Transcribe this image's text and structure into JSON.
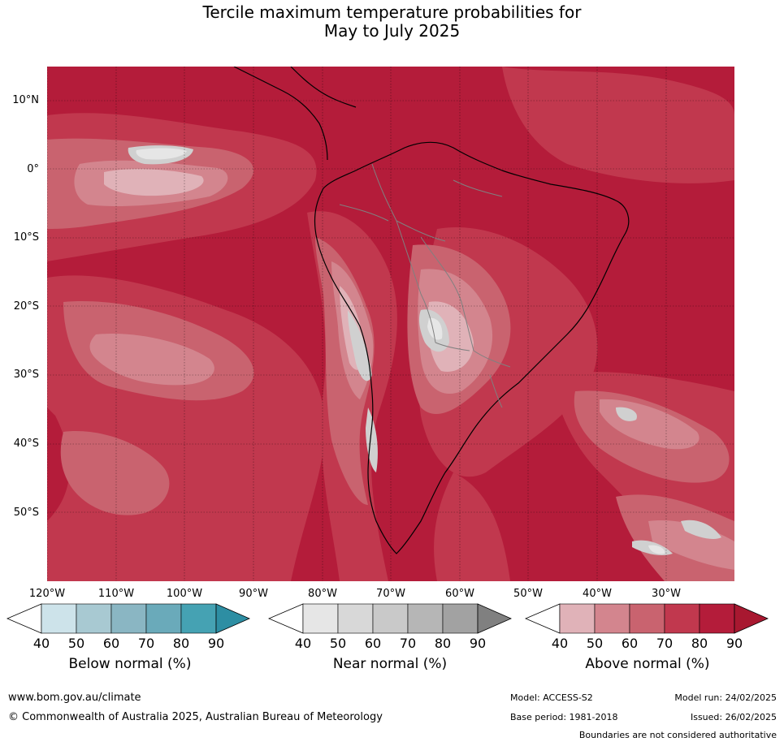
{
  "title": {
    "line1": "Tercile maximum temperature probabilities for",
    "line2": "May to July 2025"
  },
  "map": {
    "lat_labels": [
      "10°N",
      "0°",
      "10°S",
      "20°S",
      "30°S",
      "40°S",
      "50°S"
    ],
    "lon_labels": [
      "120°W",
      "110°W",
      "100°W",
      "90°W",
      "80°W",
      "70°W",
      "60°W",
      "50°W",
      "40°W",
      "30°W"
    ],
    "colors": {
      "above_90": "#b41c3a",
      "above_80": "#c1384e",
      "above_70": "#c9636f",
      "above_60": "#d3858e",
      "above_50": "#e0b2b8",
      "near_normal": "#d0d0d0",
      "near_light": "#e6e6e6",
      "coastline": "#000000",
      "borders": "#808080"
    }
  },
  "legends": [
    {
      "title": "Below normal (%)",
      "ticks": [
        "40",
        "50",
        "60",
        "70",
        "80",
        "90"
      ],
      "colors": [
        "#ffffff",
        "#cde3ea",
        "#a8c9d2",
        "#8ab6c3",
        "#6aaaba",
        "#45a2b3",
        "#2d8ea3"
      ]
    },
    {
      "title": "Near normal (%)",
      "ticks": [
        "40",
        "50",
        "60",
        "70",
        "80",
        "90"
      ],
      "colors": [
        "#ffffff",
        "#e6e6e6",
        "#d8d8d8",
        "#c9c9c9",
        "#b6b6b6",
        "#a2a2a2",
        "#808080"
      ]
    },
    {
      "title": "Above normal (%)",
      "ticks": [
        "40",
        "50",
        "60",
        "70",
        "80",
        "90"
      ],
      "colors": [
        "#ffffff",
        "#e0b2b8",
        "#d3858e",
        "#c9636f",
        "#c1384e",
        "#b41c3a",
        "#a81830"
      ]
    }
  ],
  "footer": {
    "website": "www.bom.gov.au/climate",
    "copyright": "© Commonwealth of Australia 2025, Australian Bureau of Meteorology",
    "model": "Model: ACCESS-S2",
    "base_period": "Base period: 1981-2018",
    "model_run": "Model run: 24/02/2025",
    "issued": "Issued: 26/02/2025",
    "disclaimer": "Boundaries are not considered authoritative"
  }
}
